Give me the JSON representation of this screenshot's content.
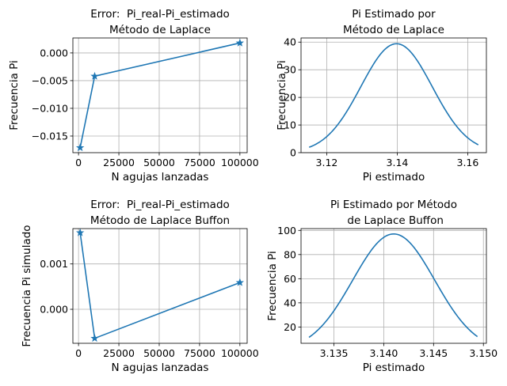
{
  "chart_data": [
    {
      "type": "line",
      "title": "Error:  Pi_real-Pi_estimado\nMétodo de Laplace",
      "xlabel": "N agujas lanzadas",
      "ylabel": "Frecuencia Pi",
      "xlim": [
        -3500,
        104500
      ],
      "ylim": [
        -0.018,
        0.0027
      ],
      "xticks": [
        0,
        25000,
        50000,
        75000,
        100000
      ],
      "xtick_labels": [
        "0",
        "25000",
        "50000",
        "75000",
        "100000"
      ],
      "yticks": [
        -0.015,
        -0.01,
        -0.005,
        0.0
      ],
      "ytick_labels": [
        "−0.015",
        "−0.010",
        "−0.005",
        "0.000"
      ],
      "grid": true,
      "marker": "star",
      "color": "#1f77b4",
      "series": [
        {
          "x": [
            1000,
            10000,
            100000
          ],
          "y": [
            -0.0171,
            -0.0042,
            0.0018
          ]
        }
      ]
    },
    {
      "type": "line",
      "title": "Pi Estimado por\nMétodo de Laplace",
      "xlabel": "Pi estimado",
      "ylabel": "Frecuencia Pi",
      "xlim": [
        3.1127,
        3.1653
      ],
      "ylim": [
        0,
        41.5
      ],
      "xticks": [
        3.12,
        3.14,
        3.16
      ],
      "xtick_labels": [
        "3.12",
        "3.14",
        "3.16"
      ],
      "yticks": [
        0,
        10,
        20,
        30,
        40
      ],
      "ytick_labels": [
        "0",
        "10",
        "20",
        "30",
        "40"
      ],
      "grid": true,
      "color": "#1f77b4",
      "curve": {
        "kind": "normal-pdf",
        "mean": 3.1398,
        "sd": 0.01012,
        "x_from": 3.115,
        "x_to": 3.163
      }
    },
    {
      "type": "line",
      "title": "Error:  Pi_real-Pi_estimado\nMétodo de Laplace Buffon",
      "xlabel": "N agujas lanzadas",
      "ylabel": "Frecuencia Pi simulado",
      "xlim": [
        -3500,
        104500
      ],
      "ylim": [
        -0.00075,
        0.00178
      ],
      "xticks": [
        0,
        25000,
        50000,
        75000,
        100000
      ],
      "xtick_labels": [
        "0",
        "25000",
        "50000",
        "75000",
        "100000"
      ],
      "yticks": [
        0.0,
        0.001
      ],
      "ytick_labels": [
        "0.000",
        "0.001"
      ],
      "grid": true,
      "marker": "star",
      "color": "#1f77b4",
      "series": [
        {
          "x": [
            1000,
            10000,
            100000
          ],
          "y": [
            0.00169,
            -0.00064,
            0.00059
          ]
        }
      ]
    },
    {
      "type": "line",
      "title": "Pi Estimado por Método\n de Laplace Buffon",
      "xlabel": "Pi estimado",
      "ylabel": "Frecuencia Pi",
      "xlim": [
        3.1317,
        3.1503
      ],
      "ylim": [
        6.5,
        101.5
      ],
      "xticks": [
        3.135,
        3.14,
        3.145,
        3.15
      ],
      "xtick_labels": [
        "3.135",
        "3.140",
        "3.145",
        "3.150"
      ],
      "yticks": [
        20,
        40,
        60,
        80,
        100
      ],
      "ytick_labels": [
        "20",
        "40",
        "60",
        "80",
        "100"
      ],
      "grid": true,
      "color": "#1f77b4",
      "curve": {
        "kind": "normal-pdf",
        "mean": 3.141,
        "sd": 0.00411,
        "x_from": 3.1325,
        "x_to": 3.1494
      }
    }
  ]
}
